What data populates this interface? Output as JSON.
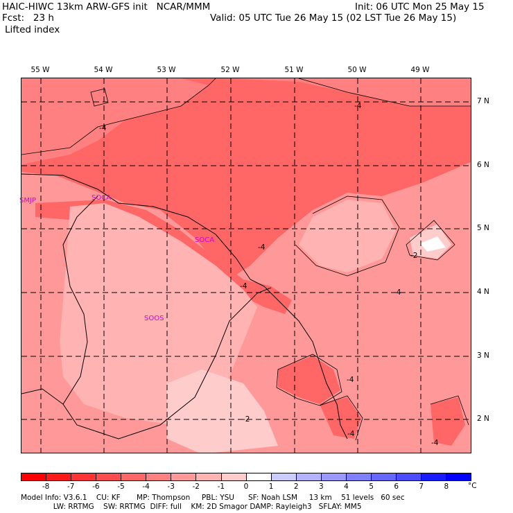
{
  "header": {
    "title_left": "HAIC-HIWC 13km ARW-GFS init   NCAR/MMM",
    "fcst_left": "Fcst:   23 h",
    "field": "Lifted index",
    "init_right": "Init: 06 UTC Mon 25 May 15",
    "valid_right": "Valid: 05 UTC Tue 26 May 15 (02 LST Tue 26 May 15)"
  },
  "map": {
    "lon_labels": [
      "55 W",
      "54 W",
      "53 W",
      "52 W",
      "51 W",
      "50 W",
      "49 W"
    ],
    "lat_labels": [
      "7 N",
      "6 N",
      "5 N",
      "4 N",
      "3 N",
      "2 N"
    ],
    "stations": [
      "SMJP",
      "SOCA",
      "SOCA",
      "SOOS"
    ],
    "contour_labels": [
      "-4",
      "-4",
      "-4",
      "-4",
      "-2",
      "-2",
      "-4",
      "-4",
      "-4",
      "-4"
    ]
  },
  "colorbar": {
    "ticks": [
      "-8",
      "-7",
      "-6",
      "-5",
      "-4",
      "-3",
      "-2",
      "-1",
      "0",
      "1",
      "2",
      "3",
      "4",
      "5",
      "6",
      "7",
      "8"
    ],
    "unit": "°C",
    "colors": [
      "#ff0000",
      "#ff1a1a",
      "#ff3333",
      "#ff4d4d",
      "#ff6666",
      "#ff8080",
      "#ff9999",
      "#ffb3b3",
      "#ffcccc",
      "#ffffff",
      "#ccccff",
      "#b3b3ff",
      "#9999ff",
      "#8080ff",
      "#6666ff",
      "#4d4dff",
      "#1a1aff",
      "#0000ff"
    ]
  },
  "footer": {
    "line1": "Model Info: V3.6.1    CU: KF       MP: Thompson     PBL: YSU      SF: Noah LSM     13 km    51 levels   60 sec",
    "line2": "              LW: RRTMG    SW: RRTMG  DIFF: full    KM: 2D Smagor DAMP: Rayleigh3   SFLAY: MM5"
  }
}
